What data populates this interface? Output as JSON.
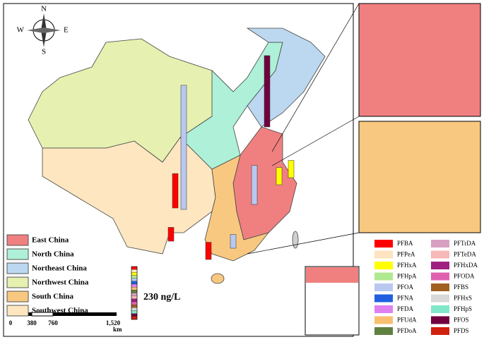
{
  "compass": {
    "n": "N",
    "s": "S",
    "e": "E",
    "w": "W"
  },
  "regions": [
    {
      "name": "East China",
      "color": "#f08080"
    },
    {
      "name": "North China",
      "color": "#aef0d8"
    },
    {
      "name": "Northeast China",
      "color": "#bcd8f0"
    },
    {
      "name": "Northwest China",
      "color": "#e6f0b0"
    },
    {
      "name": "South China",
      "color": "#f8c880"
    },
    {
      "name": "Southwest China",
      "color": "#fde6c0"
    }
  ],
  "compounds": [
    {
      "name": "PFBA",
      "color": "#ff0000"
    },
    {
      "name": "PFPeA",
      "color": "#fde3c0"
    },
    {
      "name": "PFHxA",
      "color": "#ffff00"
    },
    {
      "name": "PFHpA",
      "color": "#b0e890"
    },
    {
      "name": "PFOA",
      "color": "#b8c8f0"
    },
    {
      "name": "PFNA",
      "color": "#2060e0"
    },
    {
      "name": "PFDA",
      "color": "#e080f0"
    },
    {
      "name": "PFUdA",
      "color": "#f8c070"
    },
    {
      "name": "PFDoA",
      "color": "#608040"
    },
    {
      "name": "PFTrDA",
      "color": "#d8a0c0"
    },
    {
      "name": "PFTeDA",
      "color": "#f8b8b8"
    },
    {
      "name": "PFHxDA",
      "color": "#a02080"
    },
    {
      "name": "PFODA",
      "color": "#e060b0"
    },
    {
      "name": "PFBS",
      "color": "#a06020"
    },
    {
      "name": "PFHxS",
      "color": "#d8d8d8"
    },
    {
      "name": "PFHpS",
      "color": "#80e8c8"
    },
    {
      "name": "PFOS",
      "color": "#700040"
    },
    {
      "name": "PFDS",
      "color": "#d02010"
    }
  ],
  "scale": {
    "label": "230 ng/L",
    "value": 230
  },
  "distance": {
    "labels": [
      "0",
      "380",
      "760",
      "1,520"
    ],
    "unit": "km"
  },
  "sites": [
    {
      "value": 540,
      "color": "#b8c8f0"
    },
    {
      "value": 310,
      "color": "#700040"
    },
    {
      "value": 150,
      "color": "#ff0000"
    },
    {
      "value": 75,
      "color": "#ff0000"
    },
    {
      "value": 60,
      "color": "#ff0000"
    },
    {
      "value": 170,
      "color": "#b8c8f0"
    },
    {
      "value": 75,
      "color": "#ffff00"
    },
    {
      "value": 75,
      "color": "#ffff00"
    },
    {
      "value": 60,
      "color": "#b8c8f0"
    }
  ]
}
